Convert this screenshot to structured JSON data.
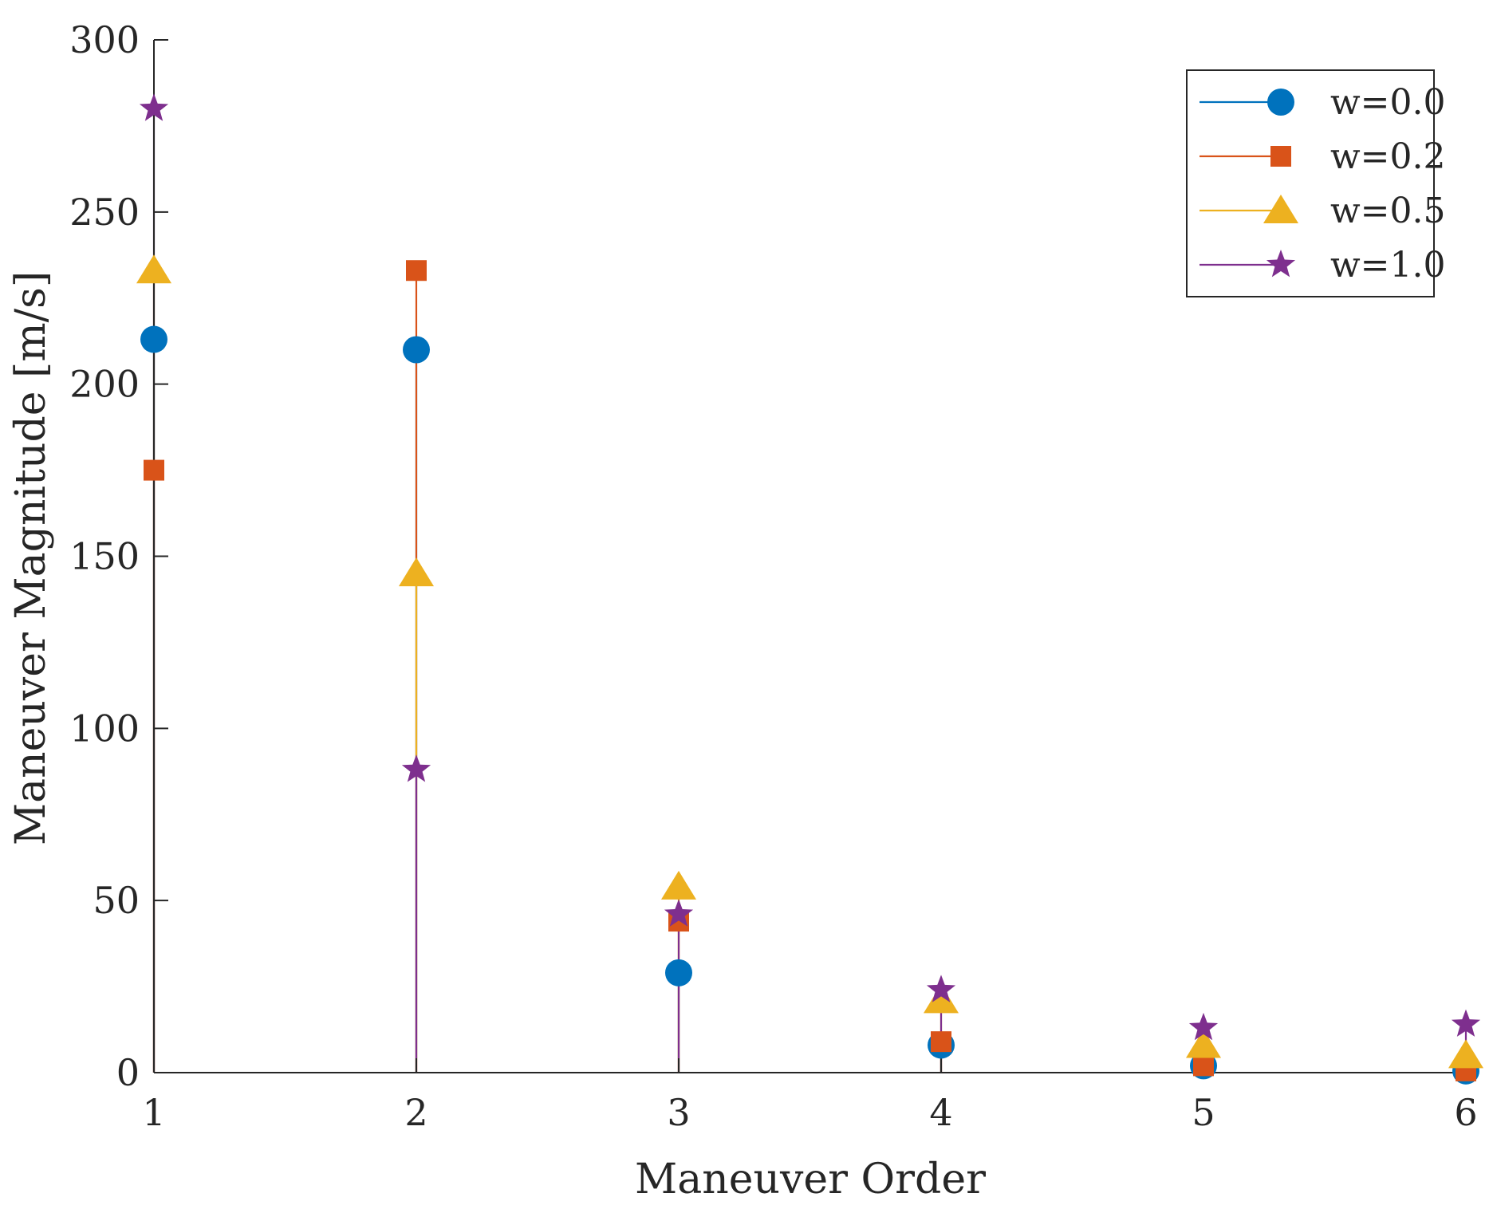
{
  "chart_data": {
    "type": "stem",
    "title": "",
    "xlabel": "Maneuver Order",
    "ylabel": "Maneuver Magnitude [m/s]",
    "x": [
      1,
      2,
      3,
      4,
      5,
      6
    ],
    "xlim": [
      1,
      6
    ],
    "ylim": [
      0,
      300
    ],
    "xticks": [
      1,
      2,
      3,
      4,
      5,
      6
    ],
    "yticks": [
      0,
      50,
      100,
      150,
      200,
      250,
      300
    ],
    "grid": false,
    "legend_position": "top-right",
    "series": [
      {
        "name": "w=0.0",
        "color": "#0072BD",
        "marker": "circle",
        "values": [
          213,
          210,
          29,
          8,
          2,
          0.5
        ]
      },
      {
        "name": "w=0.2",
        "color": "#D95319",
        "marker": "square",
        "values": [
          175,
          233,
          44,
          9,
          2,
          0.5
        ]
      },
      {
        "name": "w=0.5",
        "color": "#EDB120",
        "marker": "triangle",
        "values": [
          233,
          145,
          54,
          21,
          8,
          5
        ]
      },
      {
        "name": "w=1.0",
        "color": "#7E2F8E",
        "marker": "star",
        "values": [
          280,
          88,
          46,
          24,
          13,
          14
        ]
      }
    ]
  }
}
